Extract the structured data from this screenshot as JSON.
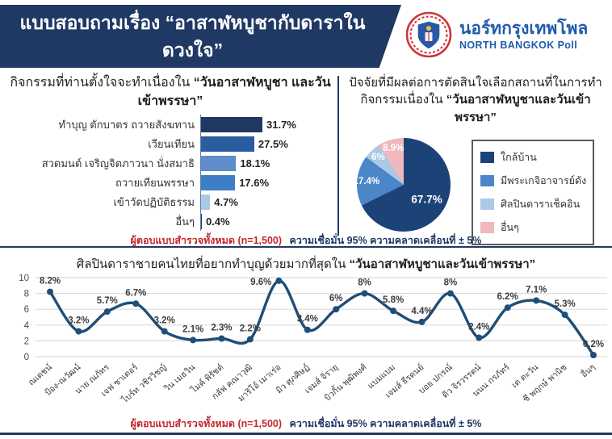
{
  "header": {
    "title": "แบบสอบถามเรื่อง “อาสาฬหบูชากับ​ดาราในดวงใจ”",
    "brand_thai": "นอร์ทกรุงเทพโพล",
    "brand_english": "NORTH BANGKOK Poll"
  },
  "footnote": {
    "part1": "ผู้ตอบแบบสำรวจทั้งหมด (n=1,500)",
    "part2": "ความเชื่อมั่น 95% ความคลาดเคลื่อนที่ ± 5%"
  },
  "colors": {
    "navy": "#1f3864",
    "brand_blue": "#1d5cab",
    "footnote_red": "#c1272d",
    "gridline_gray": "#dcdcdc"
  },
  "chart_data": [
    {
      "type": "bar",
      "orientation": "horizontal",
      "title": "กิจกรรมที่ท่านตั้งใจจะทำเนื่องใน",
      "title_bold": "“วันอาสาฬหบูชา และวันเข้าพรรษา”",
      "categories": [
        "ทำบุญ ตักบาตร ถวายสังฆทาน",
        "เวียนเทียน",
        "สวดมนต์ เจริญจิตภาวนา นั่งสมาธิ",
        "ถวายเทียนพรรษา",
        "เข้าวัดปฏิบัติธรรม",
        "อื่นๆ"
      ],
      "values": [
        31.7,
        27.5,
        18.1,
        17.6,
        4.7,
        0.4
      ],
      "labels": [
        "31.7%",
        "27.5%",
        "18.1%",
        "17.6%",
        "4.7%",
        "0.4%"
      ],
      "colors": [
        "#1f3864",
        "#2a5d9f",
        "#5f8cca",
        "#3d7ec6",
        "#a9c9e6",
        "#1f3864"
      ],
      "xlim": [
        0,
        35
      ],
      "grid": false
    },
    {
      "type": "pie",
      "title": "ปัจจัยที่มีผลต่อการตัดสินใจ​เลือกสถานที่ในการ​ทำกิจกรรมเนื่องใน",
      "title_bold": "“วันอาสาฬหบูชา​และวันเข้าพรรษา”",
      "start_angle_deg": 0,
      "direction": "clockwise",
      "legend_position": "right",
      "slices": [
        {
          "label": "ใกล้บ้าน",
          "value": 67.7,
          "display": "67.7%",
          "color": "#1c4377"
        },
        {
          "label": "มีพระเกจิอาจารย์ดัง",
          "value": 17.4,
          "display": "17.4%",
          "color": "#4a86c8"
        },
        {
          "label": "ศิลปินดาราเช็คอิน",
          "value": 6,
          "display": "6%",
          "color": "#a9c9e6"
        },
        {
          "label": "อื่นๆ",
          "value": 8.9,
          "display": "8.9%",
          "color": "#f0b7bc"
        }
      ]
    },
    {
      "type": "line",
      "title": "ศิลปินดาราชายคนไทยที่อยากทำบุญด้วยมากที่สุดใน",
      "title_bold": "“วันอาสาฬหบูชาและวันเข้าพรรษา”",
      "categories": [
        "ณเดชน์",
        "ป้อง-ณวัฒน์",
        "นาย ณภัทร",
        "เจฟ ซาเตอร์",
        "ไบร์ท วชิรวิชญ์",
        "วิน เมธวิน",
        "ไมค์ พิรัชต์",
        "กลัฟ คณาวุฒิ",
        "มาริโอ้ เมาเร่อ",
        "มิว ศุภศิษฏ์",
        "เจมส์ จิรายุ",
        "บิวกิ้น พุฒิพงศ์",
        "แบมแบม",
        "เจมส์ ธีรดนย์",
        "บอย ปกรณ์",
        "ดิว จิรวรรตน์",
        "นนน กรภัทร์",
        "เต ตะวัน",
        "ซี พฤกษ์ พานิช",
        "อื่นๆ"
      ],
      "values": [
        8.2,
        3.2,
        5.7,
        6.7,
        3.2,
        2.1,
        2.3,
        2.2,
        9.6,
        3.4,
        6,
        8,
        5.8,
        4.4,
        8,
        2.4,
        6.2,
        7.1,
        5.3,
        0.2
      ],
      "labels": [
        "8.2%",
        "3.2%",
        "5.7%",
        "6.7%",
        "3.2%",
        "2.1%",
        "2.3%",
        "2.2%",
        "9.6%",
        "3.4%",
        "6%",
        "8%",
        "5.8%",
        "4.4%",
        "8%",
        "2.4%",
        "6.2%",
        "7.1%",
        "5.3%",
        "0.2%"
      ],
      "ylim": [
        0,
        10
      ],
      "yticks": [
        0,
        2,
        4,
        6,
        8,
        10
      ],
      "grid": true,
      "line_color": "#1f4e79"
    }
  ]
}
